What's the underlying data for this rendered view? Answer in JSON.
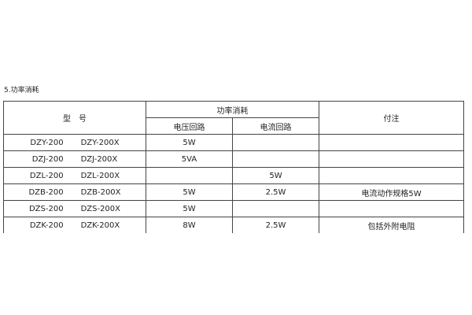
{
  "section_title": "5.功率消耗",
  "table": {
    "headers": {
      "model": "型　号",
      "power": "功率消耗",
      "voltage_circuit": "电压回路",
      "current_circuit": "电流回路",
      "remarks": "付注"
    },
    "rows": [
      {
        "model_a": "DZY-200",
        "model_b": "DZY-200X",
        "voltage": "5W",
        "current": "",
        "remark": ""
      },
      {
        "model_a": "DZJ-200",
        "model_b": "DZJ-200X",
        "voltage": "5VA",
        "current": "",
        "remark": ""
      },
      {
        "model_a": "DZL-200",
        "model_b": "DZL-200X",
        "voltage": "",
        "current": "5W",
        "remark": ""
      },
      {
        "model_a": "DZB-200",
        "model_b": "DZB-200X",
        "voltage": "5W",
        "current": "2.5W",
        "remark": "电流动作规格5W"
      },
      {
        "model_a": "DZS-200",
        "model_b": "DZS-200X",
        "voltage": "5W",
        "current": "",
        "remark": ""
      },
      {
        "model_a": "DZK-200",
        "model_b": "DZK-200X",
        "voltage": "8W",
        "current": "2.5W",
        "remark": "包括外附电阻"
      }
    ]
  }
}
